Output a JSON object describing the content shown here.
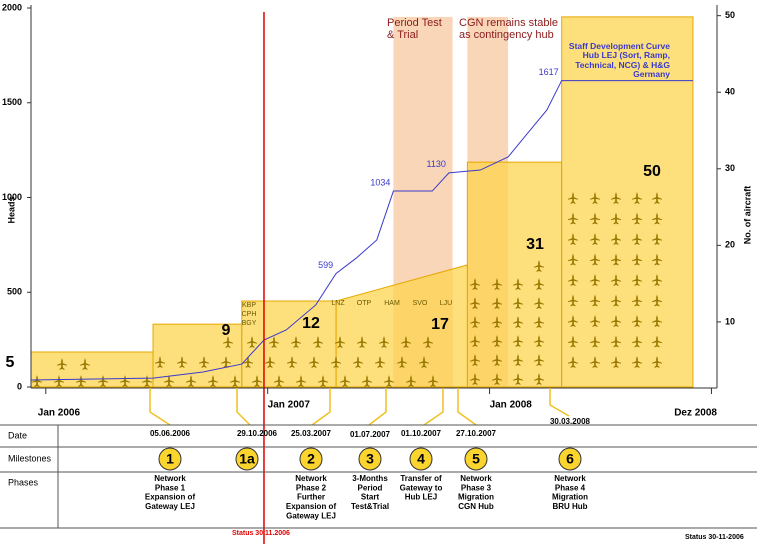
{
  "chart_data": {
    "type": "line",
    "y_label": "Heads",
    "y2_label": "No. of aircraft",
    "xlim": [
      -0.8,
      36.3
    ],
    "xticks": [
      {
        "value": 0,
        "label": "Jan 2006"
      },
      {
        "value": 12,
        "label": "Jan 2007"
      },
      {
        "value": 24,
        "label": "Jan 2008"
      },
      {
        "value": 36,
        "label": "Dez 2008"
      }
    ],
    "ylim": [
      0,
      2000
    ],
    "yticks": [
      0,
      500,
      1000,
      1500,
      2000
    ],
    "y2lim": [
      1.5,
      51
    ],
    "y2ticks": [
      10,
      20,
      30,
      40,
      50
    ],
    "series": [
      {
        "name": "Staff Development Curve Hub LEJ (Sort, Ramp, Technical, NCG) & H&G Germany",
        "color": "#3a3acc",
        "x": [
          -0.8,
          5.8,
          8.5,
          10.6,
          11.8,
          13.0,
          14.6,
          15.7,
          16.8,
          17.9,
          18.8,
          20.9,
          21.8,
          23.5,
          25.0,
          26.2,
          27.1,
          27.9,
          35.0
        ],
        "values": [
          37,
          47,
          79,
          121,
          248,
          301,
          433,
          599,
          681,
          776,
          1034,
          1034,
          1130,
          1145,
          1214,
          1356,
          1462,
          1617,
          1617
        ]
      }
    ],
    "data_labels": [
      {
        "x": 15.7,
        "value": 599
      },
      {
        "x": 18.8,
        "value": 1034
      },
      {
        "x": 21.8,
        "value": 1130
      },
      {
        "x": 27.9,
        "value": 1617
      }
    ],
    "bars": {
      "color": "#fcd24a",
      "items": [
        {
          "start": -0.8,
          "end": 5.8,
          "values": [
            185,
            185
          ]
        },
        {
          "start": 5.8,
          "end": 10.6,
          "values": [
            332,
            332
          ]
        },
        {
          "start": 10.6,
          "end": 15.7,
          "values": [
            454,
            454
          ]
        },
        {
          "start": 15.7,
          "end": 22.8,
          "values": [
            454,
            644
          ]
        },
        {
          "start": 22.8,
          "end": 27.9,
          "values": [
            1187,
            1187
          ]
        },
        {
          "start": 27.9,
          "end": 35.0,
          "values": [
            1953,
            1953
          ]
        }
      ]
    },
    "aircraft_counts": [
      5,
      9,
      12,
      17,
      31,
      50
    ],
    "bands": {
      "color": "#f8c8a0",
      "items": [
        {
          "label": "Period Test & Trial",
          "start": 18.8,
          "end": 22.0,
          "top": 1953
        },
        {
          "label": "CGN remains stable as contingency hub",
          "start": 22.8,
          "end": 25.0,
          "top": 1953
        }
      ]
    },
    "airports": [
      "KBP",
      "CPH",
      "BGY",
      "LNZ",
      "OTP",
      "HAM",
      "SVO",
      "LJU"
    ],
    "status_line": {
      "x": 11.8,
      "label": "Status 30.11.2006",
      "color": "#e00000"
    }
  },
  "timeline": {
    "row_labels": [
      "Date",
      "Milestones",
      "Phases"
    ],
    "milestones": [
      {
        "date": "05.06.2006",
        "number": "1",
        "phase": [
          "Network",
          "Phase 1",
          "Expansion of",
          "Gateway LEJ"
        ]
      },
      {
        "date": "29.10.2006",
        "number": "1a",
        "phase": []
      },
      {
        "date": "25.03.2007",
        "number": "2",
        "phase": [
          "Network",
          "Phase 2",
          "Further",
          "Expansion of",
          "Gateway LEJ"
        ]
      },
      {
        "date": "01.07.2007",
        "number": "3",
        "phase": [
          "3-Months",
          "Period",
          "Start",
          "Test&Trial"
        ]
      },
      {
        "date": "01.10.2007",
        "number": "4",
        "phase": [
          "Transfer of",
          "Gateway to",
          "Hub LEJ"
        ]
      },
      {
        "date": "27.10.2007",
        "number": "5",
        "phase": [
          "Network",
          "Phase 3",
          "Migration",
          "CGN Hub"
        ]
      },
      {
        "date": "30.03.2008",
        "number": "6",
        "phase": [
          "Network",
          "Phase 4",
          "Migration",
          "BRU Hub"
        ]
      }
    ]
  },
  "footer": "Status 30-11-2006"
}
